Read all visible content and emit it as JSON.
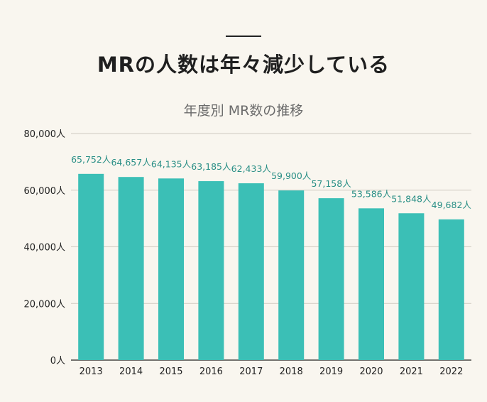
{
  "headline": "MRの人数は年々減少している",
  "colors": {
    "bar": "#3bbfb6",
    "grid": "#cfcac0",
    "label": "#2a8f86"
  },
  "chart_data": {
    "type": "bar",
    "title": "年度別 MR数の推移",
    "xlabel": "",
    "ylabel": "",
    "categories": [
      "2013",
      "2014",
      "2015",
      "2016",
      "2017",
      "2018",
      "2019",
      "2020",
      "2021",
      "2022"
    ],
    "values": [
      65752,
      64657,
      64135,
      63185,
      62433,
      59900,
      57158,
      53586,
      51848,
      49682
    ],
    "data_labels": [
      "65,752人",
      "64,657人",
      "64,135人",
      "63,185人",
      "62,433人",
      "59,900人",
      "57,158人",
      "53,586人",
      "51,848人",
      "49,682人"
    ],
    "ylim": [
      0,
      80000
    ],
    "y_ticks": [
      0,
      20000,
      40000,
      60000,
      80000
    ],
    "y_tick_labels": [
      "0人",
      "20,000人",
      "40,000人",
      "60,000人",
      "80,000人"
    ],
    "grid": true,
    "legend": "none"
  }
}
